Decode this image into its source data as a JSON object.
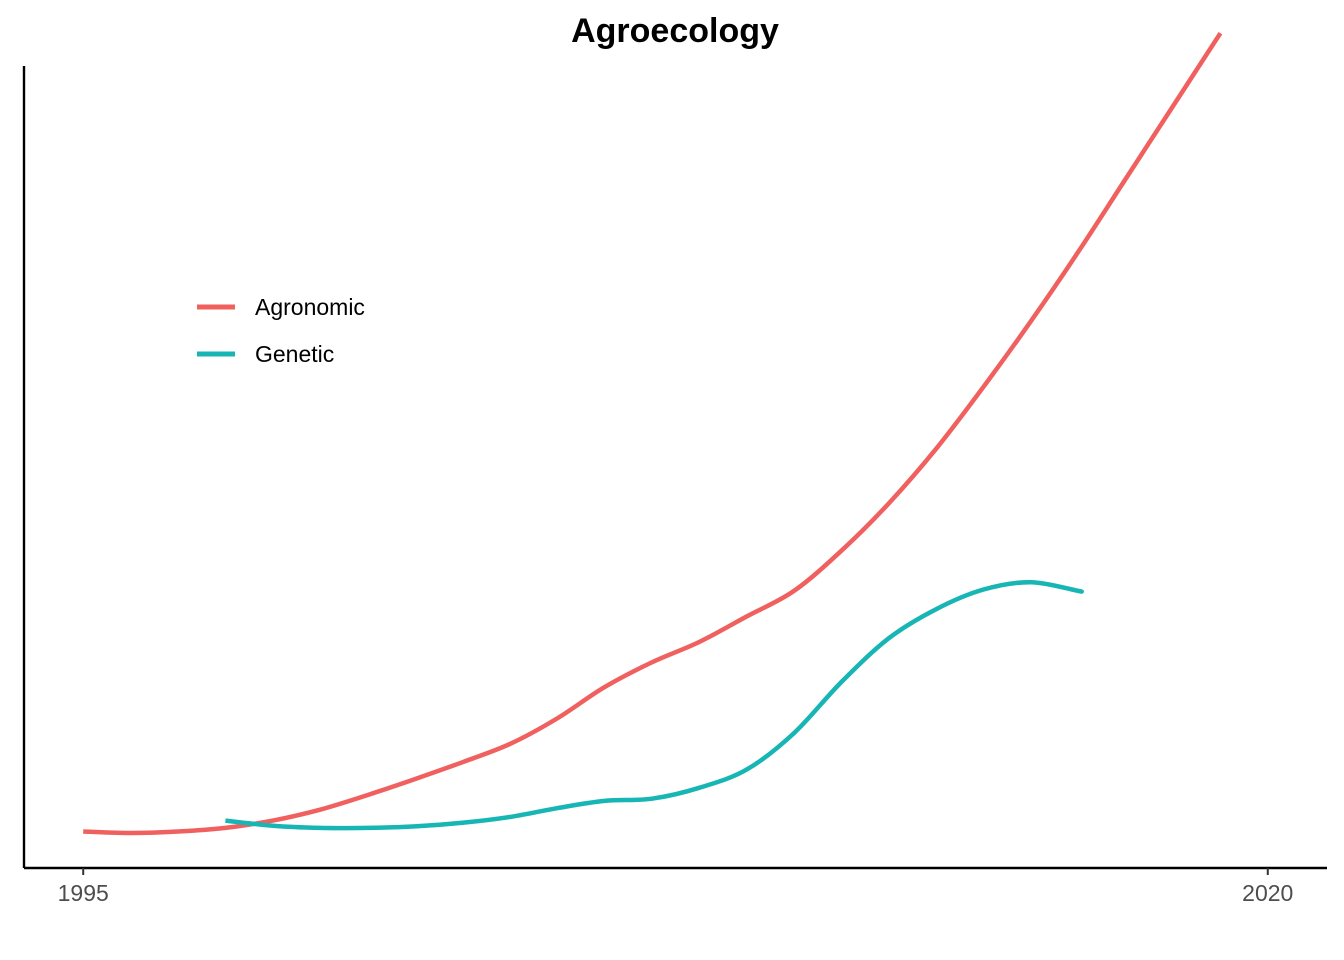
{
  "chart_data": {
    "type": "line",
    "title": "Agroecology",
    "xlabel": "",
    "ylabel": "",
    "xlim": [
      1993.75,
      2021.25
    ],
    "ylim": [
      -0.5,
      10.5
    ],
    "x_ticks": [
      1995,
      2020
    ],
    "x_tick_labels": [
      "1995",
      "2020"
    ],
    "y_ticks": [],
    "grid": false,
    "legend_position": "top-left inside",
    "colors": {
      "agronomic": "#F0605F",
      "genetic": "#18B5B5",
      "axis": "#000000"
    },
    "series": [
      {
        "name": "Agronomic",
        "color": "#F0605F",
        "points": [
          [
            1995.0,
            0.0
          ],
          [
            1996.0,
            -0.02
          ],
          [
            1997.0,
            0.0
          ],
          [
            1998.0,
            0.05
          ],
          [
            1999.0,
            0.15
          ],
          [
            2000.0,
            0.3
          ],
          [
            2001.0,
            0.5
          ],
          [
            2002.0,
            0.72
          ],
          [
            2003.0,
            0.95
          ],
          [
            2004.0,
            1.2
          ],
          [
            2005.0,
            1.55
          ],
          [
            2006.0,
            1.98
          ],
          [
            2007.0,
            2.32
          ],
          [
            2008.0,
            2.6
          ],
          [
            2009.0,
            2.95
          ],
          [
            2010.0,
            3.3
          ],
          [
            2011.0,
            3.85
          ],
          [
            2012.0,
            4.5
          ],
          [
            2013.0,
            5.25
          ],
          [
            2014.0,
            6.1
          ],
          [
            2015.0,
            7.0
          ],
          [
            2016.0,
            7.95
          ],
          [
            2017.0,
            8.95
          ],
          [
            2018.0,
            9.95
          ],
          [
            2019.0,
            10.95
          ]
        ]
      },
      {
        "name": "Genetic",
        "color": "#18B5B5",
        "points": [
          [
            1998.0,
            0.15
          ],
          [
            1999.0,
            0.08
          ],
          [
            2000.0,
            0.05
          ],
          [
            2001.0,
            0.05
          ],
          [
            2002.0,
            0.07
          ],
          [
            2003.0,
            0.12
          ],
          [
            2004.0,
            0.2
          ],
          [
            2005.0,
            0.32
          ],
          [
            2006.0,
            0.42
          ],
          [
            2007.0,
            0.45
          ],
          [
            2008.0,
            0.6
          ],
          [
            2009.0,
            0.85
          ],
          [
            2010.0,
            1.35
          ],
          [
            2011.0,
            2.05
          ],
          [
            2012.0,
            2.65
          ],
          [
            2013.0,
            3.05
          ],
          [
            2014.0,
            3.32
          ],
          [
            2015.0,
            3.42
          ],
          [
            2016.0,
            3.3
          ],
          [
            2016.0,
            3.3
          ]
        ]
      }
    ],
    "legend": [
      {
        "label": "Agronomic",
        "color": "#F0605F"
      },
      {
        "label": "Genetic",
        "color": "#18B5B5"
      }
    ]
  }
}
